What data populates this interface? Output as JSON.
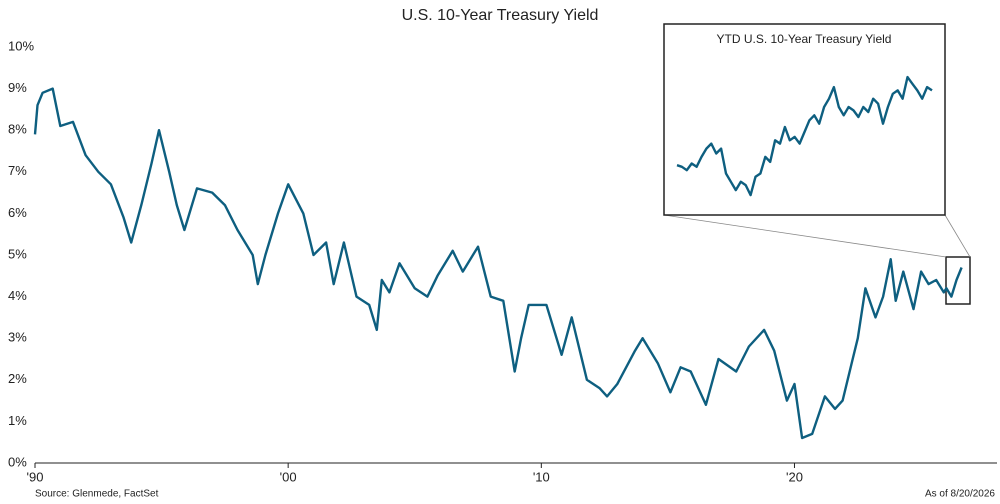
{
  "chart_data": [
    {
      "type": "line",
      "title": "U.S. 10-Year Treasury Yield",
      "source": "Source: Glenmede, FactSet",
      "note": "As of 8/20/2026",
      "color": "#0e5f80",
      "x": [
        1990.0,
        1990.1,
        1990.3,
        1990.7,
        1991.0,
        1991.5,
        1992.0,
        1992.5,
        1993.0,
        1993.5,
        1993.8,
        1994.2,
        1994.6,
        1994.9,
        1995.3,
        1995.6,
        1995.9,
        1996.4,
        1997.0,
        1997.5,
        1998.0,
        1998.6,
        1998.8,
        1999.1,
        1999.6,
        2000.0,
        2000.6,
        2001.0,
        2001.5,
        2001.8,
        2002.2,
        2002.7,
        2003.2,
        2003.5,
        2003.7,
        2004.0,
        2004.4,
        2005.0,
        2005.5,
        2005.9,
        2006.5,
        2006.9,
        2007.5,
        2008.0,
        2008.5,
        2008.95,
        2009.2,
        2009.5,
        2010.2,
        2010.8,
        2011.2,
        2011.8,
        2012.3,
        2012.6,
        2013.0,
        2013.7,
        2014.0,
        2014.6,
        2015.1,
        2015.5,
        2015.9,
        2016.5,
        2017.0,
        2017.7,
        2018.2,
        2018.8,
        2019.2,
        2019.7,
        2020.0,
        2020.3,
        2020.7,
        2021.2,
        2021.6,
        2021.9,
        2022.3,
        2022.5,
        2022.8,
        2023.2,
        2023.5,
        2023.8,
        2024.0,
        2024.3,
        2024.7,
        2025.0,
        2025.3,
        2025.6,
        2025.9,
        2026.0,
        2026.2,
        2026.4,
        2026.6
      ],
      "values": [
        7.9,
        8.6,
        8.9,
        9.0,
        8.1,
        8.2,
        7.4,
        7.0,
        6.7,
        5.9,
        5.3,
        6.2,
        7.2,
        8.0,
        7.0,
        6.2,
        5.6,
        6.6,
        6.5,
        6.2,
        5.6,
        5.0,
        4.3,
        5.0,
        6.0,
        6.7,
        6.0,
        5.0,
        5.3,
        4.3,
        5.3,
        4.0,
        3.8,
        3.2,
        4.4,
        4.1,
        4.8,
        4.2,
        4.0,
        4.5,
        5.1,
        4.6,
        5.2,
        4.0,
        3.9,
        2.2,
        3.0,
        3.8,
        3.8,
        2.6,
        3.5,
        2.0,
        1.8,
        1.6,
        1.9,
        2.7,
        3.0,
        2.4,
        1.7,
        2.3,
        2.2,
        1.4,
        2.5,
        2.2,
        2.8,
        3.2,
        2.7,
        1.5,
        1.9,
        0.6,
        0.7,
        1.6,
        1.3,
        1.5,
        2.5,
        3.0,
        4.2,
        3.5,
        4.0,
        4.9,
        3.9,
        4.6,
        3.7,
        4.6,
        4.3,
        4.4,
        4.1,
        4.2,
        4.0,
        4.4,
        4.7
      ],
      "xlim": [
        1990,
        2028
      ],
      "ylim": [
        0,
        10
      ],
      "xticks": [
        {
          "value": 1990,
          "label": "'90"
        },
        {
          "value": 2000,
          "label": "'00"
        },
        {
          "value": 2010,
          "label": "'10"
        },
        {
          "value": 2020,
          "label": "'20"
        }
      ],
      "yticks": [
        {
          "value": 0,
          "label": "0%"
        },
        {
          "value": 1,
          "label": "1%"
        },
        {
          "value": 2,
          "label": "2%"
        },
        {
          "value": 3,
          "label": "3%"
        },
        {
          "value": 4,
          "label": "4%"
        },
        {
          "value": 5,
          "label": "5%"
        },
        {
          "value": 6,
          "label": "6%"
        },
        {
          "value": 7,
          "label": "7%"
        },
        {
          "value": 8,
          "label": "8%"
        },
        {
          "value": 9,
          "label": "9%"
        },
        {
          "value": 10,
          "label": "10%"
        }
      ]
    },
    {
      "type": "line",
      "title": "YTD U.S. 10-Year Treasury Yield",
      "color": "#0e5f80",
      "ylim": [
        3.85,
        5.0
      ],
      "values": [
        4.15,
        4.14,
        4.12,
        4.16,
        4.14,
        4.2,
        4.25,
        4.28,
        4.22,
        4.25,
        4.1,
        4.05,
        4.0,
        4.05,
        4.03,
        3.97,
        4.08,
        4.1,
        4.2,
        4.17,
        4.3,
        4.28,
        4.38,
        4.3,
        4.32,
        4.28,
        4.35,
        4.42,
        4.45,
        4.4,
        4.5,
        4.55,
        4.62,
        4.5,
        4.45,
        4.5,
        4.48,
        4.44,
        4.5,
        4.47,
        4.55,
        4.52,
        4.4,
        4.5,
        4.58,
        4.6,
        4.55,
        4.68,
        4.64,
        4.6,
        4.55,
        4.62,
        4.6
      ]
    }
  ]
}
